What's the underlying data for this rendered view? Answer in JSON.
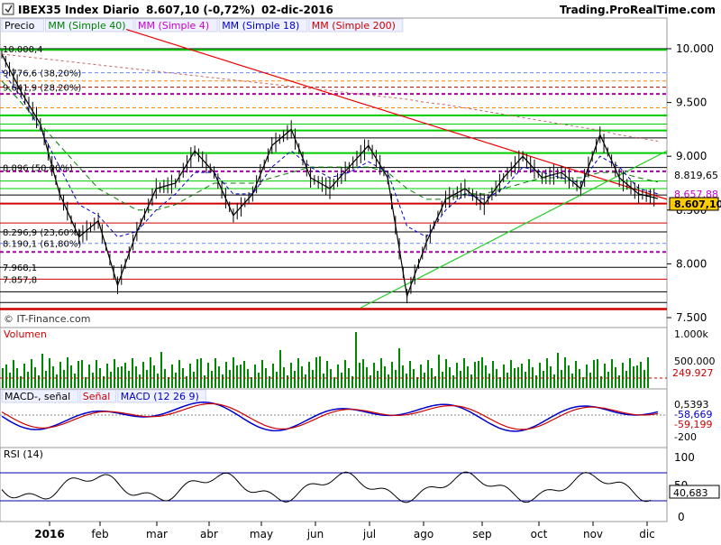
{
  "header": {
    "ticker": "IBEX35 Index",
    "period": "Diario",
    "quote": "8.607,10 (-0,72%)",
    "date": "02-dic-2016",
    "brand": "Trading.ProRealTime.com"
  },
  "price_legend": [
    {
      "label": "Precio",
      "color": "#000000"
    },
    {
      "label": "MM (Simple 40)",
      "color": "#008000"
    },
    {
      "label": "MM (Simple 4)",
      "color": "#cc00cc"
    },
    {
      "label": "MM (Simple 18)",
      "color": "#0000cc"
    },
    {
      "label": "MM (Simple 200)",
      "color": "#cc0000"
    }
  ],
  "watermark": "© IT-Finance.com",
  "current_price_label": "8.607,10",
  "price_tags": [
    "8.819,65",
    "8.657,88"
  ],
  "level_labels": [
    {
      "text": "10.000,4",
      "price": 10000.4
    },
    {
      "text": "9.776,6 (38,20%)",
      "price": 9776.6
    },
    {
      "text": "9.641,9 (28,20%)",
      "price": 9641.9
    },
    {
      "text": "8.896 (50,00%)",
      "price": 8896
    },
    {
      "text": "8.296,9 (23,60%)",
      "price": 8296.9
    },
    {
      "text": "8.190,1 (61,80%)",
      "price": 8190.1
    },
    {
      "text": "7.968,1",
      "price": 7968.1
    },
    {
      "text": "7.857,8",
      "price": 7857.8
    }
  ],
  "volume_panel": {
    "label": "Volumen",
    "ticks": [
      "1.000k",
      "500.000"
    ],
    "current": "249.927"
  },
  "macd_panel": {
    "legend": [
      {
        "label": "MACD-, señal",
        "color": "#000000"
      },
      {
        "label": "Señal",
        "color": "#cc0000"
      },
      {
        "label": "MACD (12 26 9)",
        "color": "#0000cc"
      }
    ],
    "tags": [
      "0,5393",
      "-58,669",
      "-59,199"
    ],
    "tick": "-200"
  },
  "rsi_panel": {
    "label": "RSI (14)",
    "ticks": [
      "100",
      "50",
      "0"
    ],
    "current": "40,683"
  },
  "x_axis_labels": [
    "2016",
    "feb",
    "mar",
    "abr",
    "may",
    "jun",
    "jul",
    "ago",
    "sep",
    "oct",
    "nov",
    "dic"
  ],
  "chart_data": {
    "type": "candlestick",
    "title": "IBEX35 Index Diario",
    "y_ticks": [
      "10.000",
      "9.500",
      "9.000",
      "8.500",
      "8.000",
      "7.500"
    ],
    "ylim": [
      7500,
      10200
    ],
    "x": [
      "2016",
      "feb",
      "mar",
      "abr",
      "may",
      "jun",
      "jul",
      "ago",
      "sep",
      "oct",
      "nov",
      "dic"
    ],
    "price_series": [
      {
        "name": "Precio",
        "values": [
          9950,
          9600,
          9300,
          8650,
          8250,
          8400,
          7800,
          8300,
          8700,
          8750,
          9050,
          8850,
          8450,
          8650,
          9100,
          9250,
          8800,
          8700,
          8900,
          9100,
          8800,
          7700,
          8200,
          8600,
          8700,
          8550,
          8800,
          9000,
          8800,
          8850,
          8700,
          9200,
          8800,
          8650,
          8607
        ]
      },
      {
        "name": "MM (Simple 40)",
        "values": [
          9700,
          9500,
          9300,
          9100,
          8900,
          8700,
          8600,
          8500,
          8500,
          8550,
          8650,
          8750,
          8750,
          8750,
          8800,
          8850,
          8900,
          8900,
          8900,
          8900,
          8850,
          8700,
          8600,
          8600,
          8650,
          8650,
          8700,
          8750,
          8800,
          8800,
          8800,
          8850,
          8850,
          8800,
          8760
        ]
      },
      {
        "name": "MM (Simple 18)",
        "values": [
          9800,
          9550,
          9250,
          8900,
          8550,
          8450,
          8250,
          8300,
          8500,
          8650,
          8850,
          8850,
          8650,
          8650,
          8900,
          9050,
          8900,
          8800,
          8850,
          8950,
          8850,
          8350,
          8250,
          8500,
          8650,
          8600,
          8700,
          8900,
          8850,
          8800,
          8750,
          9000,
          8900,
          8700,
          8650
        ]
      },
      {
        "name": "MM (Simple 200)",
        "values": [
          9950,
          9930,
          9910,
          9890,
          9870,
          9850,
          9830,
          9810,
          9790,
          9770,
          9750,
          9730,
          9710,
          9690,
          9670,
          9650,
          9630,
          9610,
          9590,
          9570,
          9550,
          9530,
          9500,
          9480,
          9450,
          9420,
          9390,
          9360,
          9330,
          9300,
          9270,
          9240,
          9200,
          9170,
          9140
        ]
      }
    ],
    "macd": {
      "macd": -58.669,
      "signal": -59.199,
      "histogram": 0.5393
    },
    "rsi": 40.683
  }
}
